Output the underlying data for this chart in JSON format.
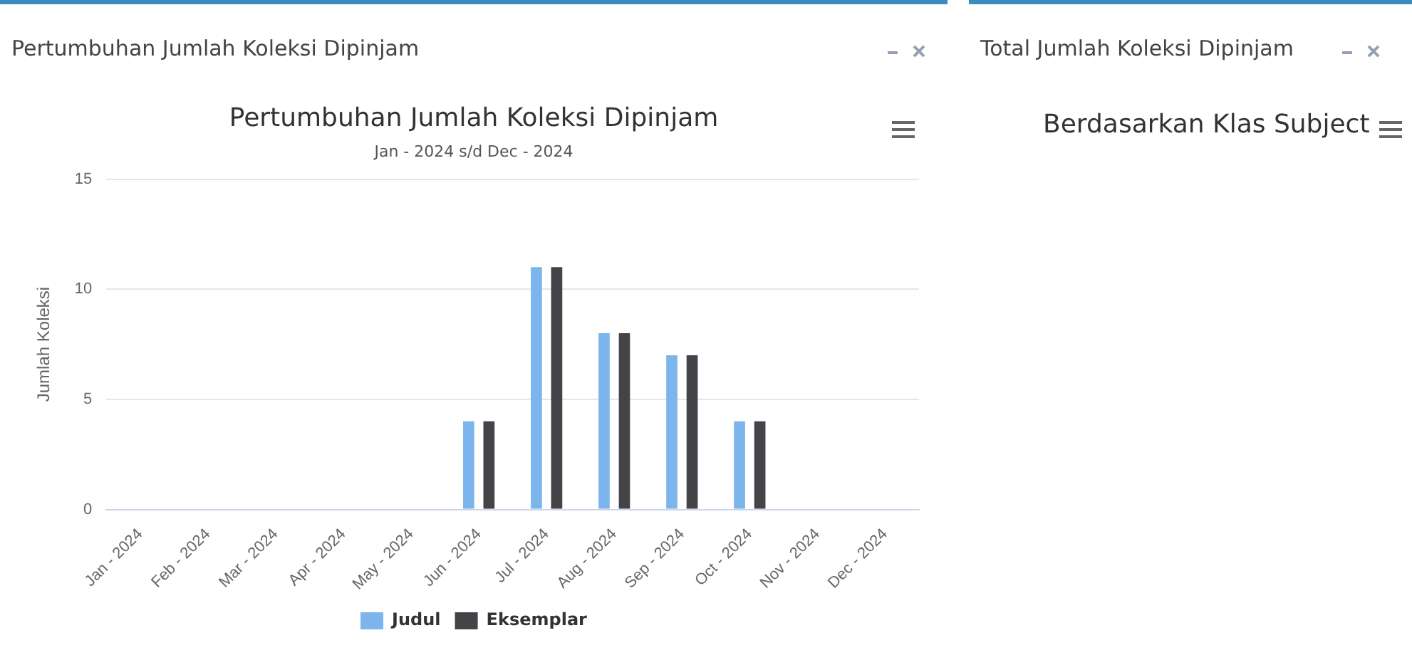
{
  "chart_data": [
    {
      "type": "bar",
      "title": "Pertumbuhan Jumlah Koleksi Dipinjam",
      "subtitle": "Jan - 2024 s/d Dec - 2024",
      "ylabel": "Jumlah Koleksi",
      "annotations": [
        "Pertumbuhan Jumlah Koleksi Dipinjam"
      ],
      "categories": [
        "Jan - 2024",
        "Feb - 2024",
        "Mar - 2024",
        "Apr - 2024",
        "May - 2024",
        "Jun - 2024",
        "Jul - 2024",
        "Aug - 2024",
        "Sep - 2024",
        "Oct - 2024",
        "Nov - 2024",
        "Dec - 2024"
      ],
      "series": [
        {
          "name": "Judul",
          "color": "#7cb5ec",
          "values": [
            0,
            0,
            0,
            0,
            0,
            4,
            11,
            8,
            7,
            4,
            0,
            0
          ]
        },
        {
          "name": "Eksemplar",
          "color": "#434348",
          "values": [
            0,
            0,
            0,
            0,
            0,
            4,
            11,
            8,
            7,
            4,
            0,
            0
          ]
        }
      ],
      "ylim": [
        0,
        15
      ],
      "yticks": [
        0,
        5,
        10,
        15
      ],
      "grid": "y",
      "legend": "bottom"
    },
    {
      "type": "other",
      "title": "Berdasarkan Klas Subject",
      "annotations": [
        "Total Jumlah Koleksi Dipinjam"
      ]
    }
  ]
}
